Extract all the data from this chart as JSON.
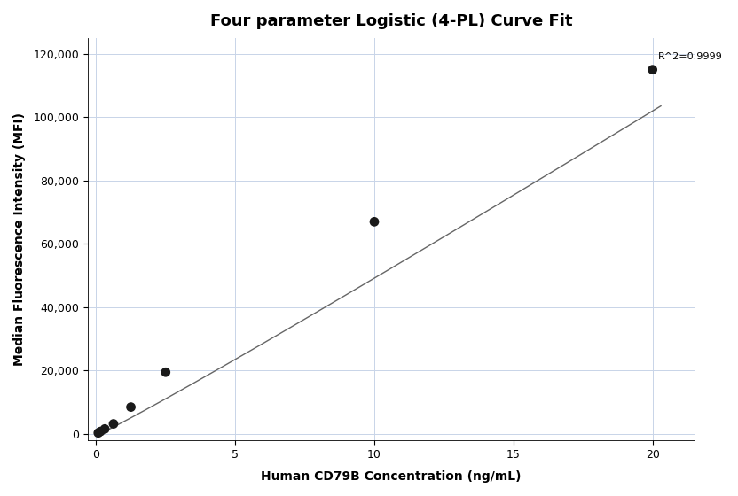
{
  "title": "Four parameter Logistic (4-PL) Curve Fit",
  "xlabel": "Human CD79B Concentration (ng/mL)",
  "ylabel": "Median Fluorescence Intensity (MFI)",
  "scatter_x": [
    0.078,
    0.156,
    0.313,
    0.625,
    1.25,
    2.5,
    10.0,
    20.0
  ],
  "scatter_y": [
    350,
    800,
    1600,
    3200,
    8500,
    19500,
    67000,
    115000
  ],
  "xlim": [
    -0.3,
    21.5
  ],
  "ylim": [
    -2000,
    125000
  ],
  "xticks": [
    0,
    5,
    10,
    15,
    20
  ],
  "yticks": [
    0,
    20000,
    40000,
    60000,
    80000,
    100000,
    120000
  ],
  "r_squared_text": "R^2=0.9999",
  "r_squared_x": 20.2,
  "r_squared_y": 120500,
  "background_color": "#ffffff",
  "grid_color": "#c8d4e8",
  "scatter_color": "#1a1a1a",
  "line_color": "#666666",
  "title_fontsize": 13,
  "label_fontsize": 10,
  "tick_fontsize": 9,
  "annotation_fontsize": 8,
  "4pl_A": -500,
  "4pl_B": 1.05,
  "4pl_C": 2000,
  "4pl_D": 13000000
}
